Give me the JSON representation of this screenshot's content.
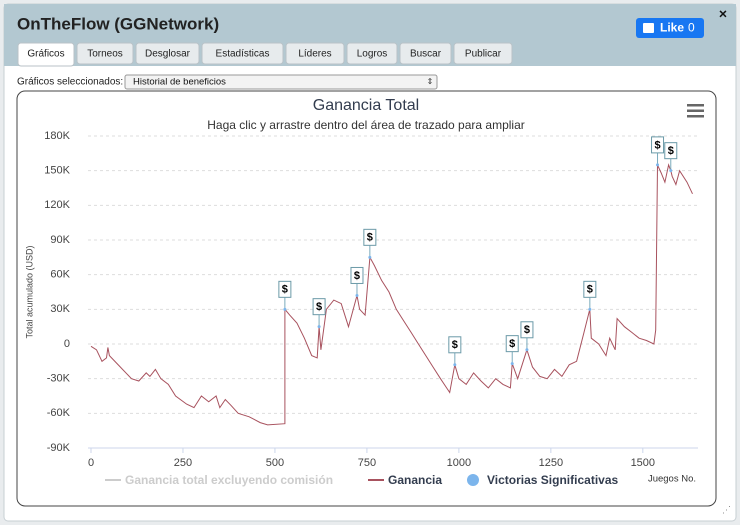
{
  "window": {
    "title": "OnTheFlow (GGNetwork)",
    "like_label": "Like",
    "like_count": "0"
  },
  "tabs": [
    "Gráficos",
    "Torneos",
    "Desglosar",
    "Estadísticas",
    "Líderes",
    "Logros",
    "Buscar",
    "Publicar"
  ],
  "selector": {
    "label": "Gráficos seleccionados:",
    "value": "Historial de beneficios"
  },
  "chart_data": {
    "type": "line",
    "title": "Ganancia Total",
    "subtitle": "Haga clic y arrastre dentro del área de trazado para ampliar",
    "y_label": "Total acumulado (USD)",
    "x_label": "Juegos No.",
    "xlim": [
      0,
      1650
    ],
    "xticks": [
      0,
      250,
      500,
      750,
      1000,
      1250,
      1500
    ],
    "ylim": [
      -90,
      180
    ],
    "yticks": [
      {
        "value": -90,
        "label": "-90K"
      },
      {
        "value": -60,
        "label": "-60K"
      },
      {
        "value": -30,
        "label": "-30K"
      },
      0,
      {
        "value": 30,
        "label": "30K"
      },
      {
        "value": 60,
        "label": "60K"
      },
      {
        "value": 90,
        "label": "90K"
      },
      {
        "value": 120,
        "label": "120K"
      },
      {
        "value": 150,
        "label": "150K"
      },
      {
        "value": 180,
        "label": "180K"
      }
    ],
    "grid": true,
    "series": [
      {
        "name": "Ganancia total excluyendo comisión",
        "color": "#cccccc",
        "visible": false,
        "x": [],
        "values": []
      },
      {
        "name": "Ganancia",
        "color": "#a8525e",
        "visible": true,
        "x": [
          0,
          15,
          30,
          42,
          46,
          50,
          80,
          110,
          130,
          150,
          160,
          175,
          190,
          210,
          230,
          260,
          280,
          300,
          320,
          340,
          350,
          365,
          380,
          400,
          430,
          460,
          480,
          527,
          527,
          540,
          560,
          580,
          600,
          615,
          620,
          625,
          640,
          660,
          680,
          700,
          723,
          730,
          745,
          758,
          770,
          790,
          810,
          830,
          850,
          870,
          890,
          910,
          930,
          950,
          975,
          989,
          1000,
          1020,
          1040,
          1060,
          1080,
          1100,
          1120,
          1140,
          1145,
          1160,
          1185,
          1200,
          1220,
          1240,
          1260,
          1280,
          1300,
          1320,
          1340,
          1356,
          1360,
          1380,
          1400,
          1410,
          1425,
          1430,
          1450,
          1470,
          1490,
          1510,
          1530,
          1535,
          1540,
          1550,
          1560,
          1570,
          1576,
          1580,
          1590,
          1600,
          1620,
          1635
        ],
        "values": [
          -2,
          -5,
          -15,
          -12,
          -3,
          -10,
          -20,
          -30,
          -32,
          -25,
          -28,
          -22,
          -30,
          -35,
          -45,
          -52,
          -55,
          -45,
          -50,
          -45,
          -55,
          -48,
          -53,
          -60,
          -63,
          -68,
          -70,
          -69,
          30,
          25,
          18,
          5,
          -10,
          -12,
          15,
          -5,
          30,
          38,
          35,
          15,
          42,
          30,
          25,
          75,
          68,
          55,
          45,
          30,
          20,
          10,
          0,
          -10,
          -20,
          -30,
          -42,
          -18,
          -30,
          -35,
          -25,
          -32,
          -38,
          -30,
          -35,
          -38,
          -17,
          -30,
          -5,
          -20,
          -28,
          -30,
          -22,
          -28,
          -18,
          -15,
          10,
          30,
          5,
          0,
          -10,
          5,
          -5,
          22,
          15,
          10,
          5,
          3,
          0,
          12,
          155,
          148,
          140,
          155,
          150,
          145,
          138,
          150,
          140,
          130
        ]
      },
      {
        "name": "Victorias Significativas",
        "color": "#7cb5ec",
        "visible": true,
        "marker_label": "$",
        "x": [
          527,
          620,
          723,
          758,
          989,
          1145,
          1185,
          1356,
          1540,
          1576
        ],
        "values": [
          30,
          15,
          42,
          75,
          -18,
          -17,
          -5,
          30,
          155,
          150
        ]
      }
    ]
  }
}
